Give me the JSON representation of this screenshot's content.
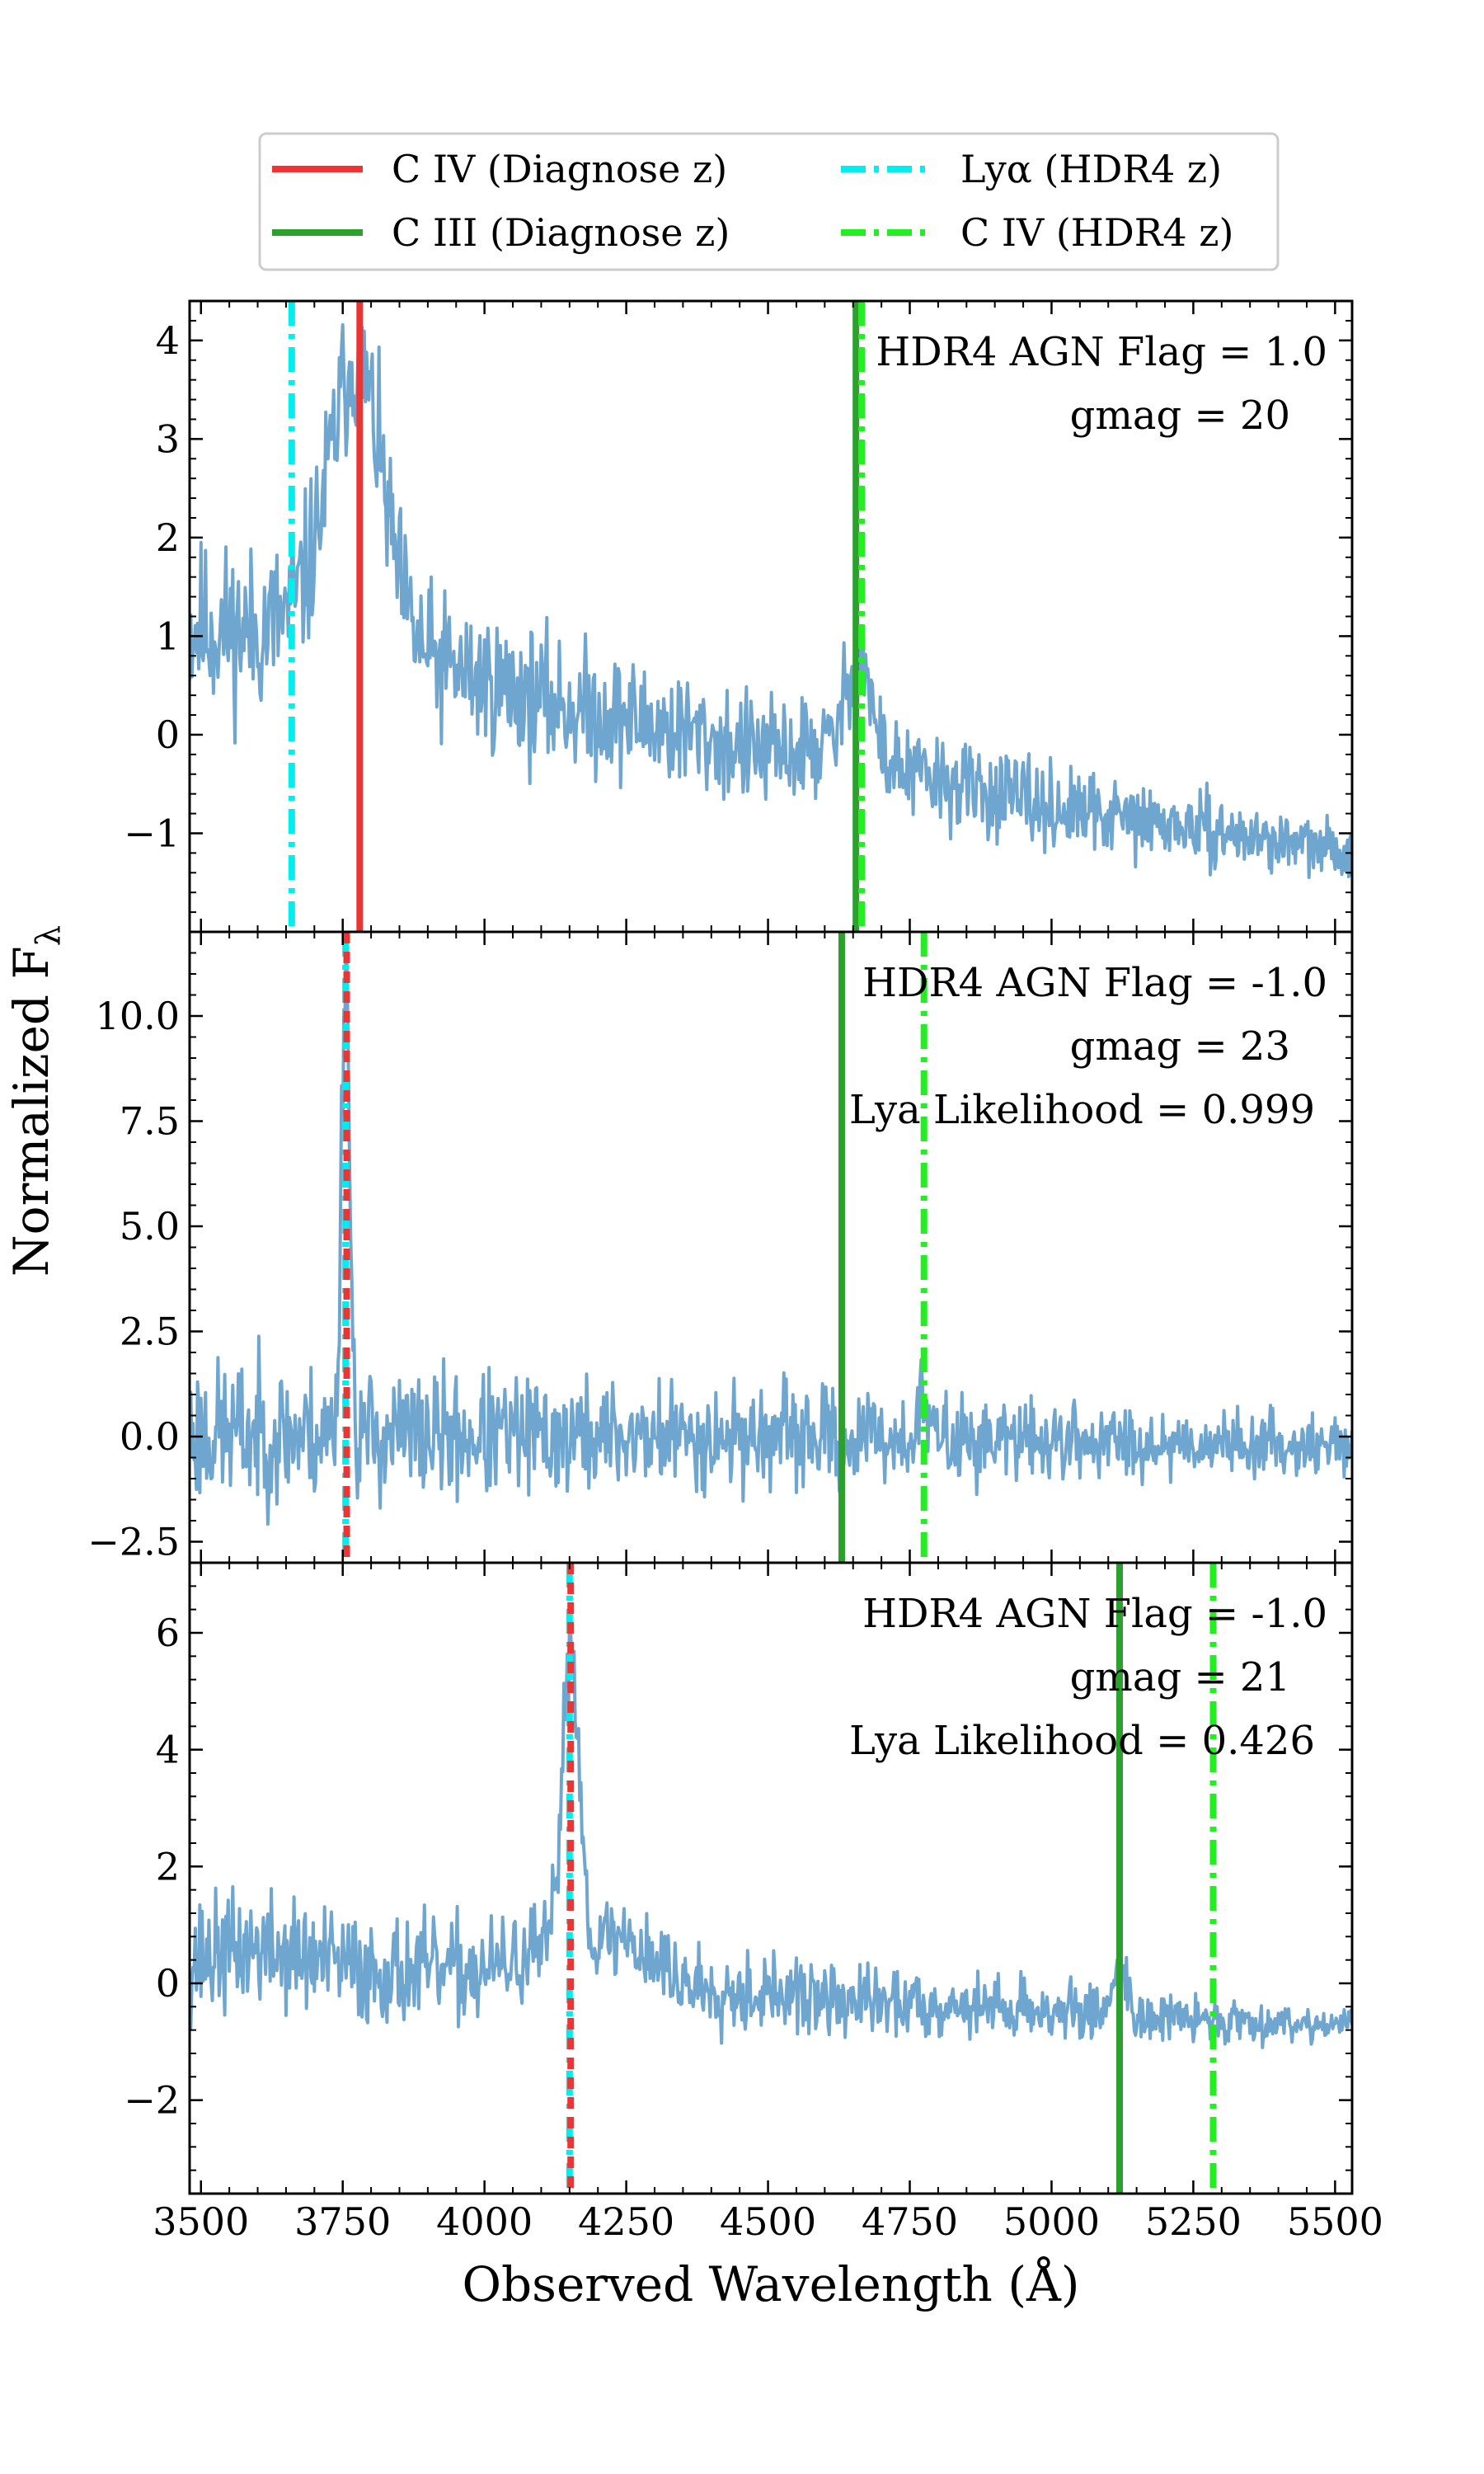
{
  "chart_data": {
    "type": "line",
    "xlabel": "Observed Wavelength (Å)",
    "ylabel": "Normalized F",
    "ylabel_sub": "λ",
    "xlim": [
      3480,
      5530
    ],
    "xticks": [
      3500,
      3750,
      4000,
      4250,
      4500,
      4750,
      5000,
      5250,
      5500
    ],
    "legend": {
      "placement": "top-center",
      "entries": [
        {
          "id": "civ_diag",
          "text": "C IV (Diagnose z)",
          "color": "#ee3333",
          "style": "solid"
        },
        {
          "id": "ciii_diag",
          "text": "C III (Diagnose z)",
          "color": "#2ca02c",
          "style": "solid"
        },
        {
          "id": "lya_hdr4",
          "text": "Lyα (HDR4 z)",
          "color": "#00eeee",
          "style": "dashdot"
        },
        {
          "id": "civ_hdr4",
          "text": "C IV (HDR4 z)",
          "color": "#22ee22",
          "style": "dashdot"
        }
      ]
    },
    "spectrum_color": "#6fa6cf",
    "panels": [
      {
        "ylim": [
          -2.0,
          4.4
        ],
        "yticks": [
          -1,
          0,
          1,
          2,
          3,
          4
        ],
        "ytick_labels": [
          "−1",
          "0",
          "1",
          "2",
          "3",
          "4"
        ],
        "annotations": [
          "HDR4 AGN Flag = 1.0",
          "gmag = 20"
        ],
        "lines": [
          {
            "legend": "lya_hdr4",
            "x": 3660
          },
          {
            "legend": "civ_diag",
            "x": 3780
          },
          {
            "legend": "ciii_diag",
            "x": 4655
          },
          {
            "legend": "civ_hdr4",
            "x": 4665
          }
        ],
        "spectrum": {
          "seed": 11,
          "noise_start": 0.75,
          "noise_end": 0.22,
          "continuum": [
            [
              3480,
              1.1
            ],
            [
              3600,
              1.05
            ],
            [
              3700,
              1.3
            ],
            [
              3900,
              0.75
            ],
            [
              4100,
              0.35
            ],
            [
              4300,
              0.1
            ],
            [
              4500,
              -0.2
            ],
            [
              4640,
              -0.1
            ],
            [
              4750,
              -0.4
            ],
            [
              5000,
              -0.75
            ],
            [
              5250,
              -0.95
            ],
            [
              5530,
              -1.2
            ]
          ],
          "peaks": [
            {
              "x": 3775,
              "amp": 2.7,
              "w": 45
            },
            {
              "x": 4660,
              "amp": 1.0,
              "w": 20
            }
          ]
        }
      },
      {
        "ylim": [
          -3.0,
          12.0
        ],
        "yticks": [
          -2.5,
          0.0,
          2.5,
          5.0,
          7.5,
          10.0
        ],
        "ytick_labels": [
          "−2.5",
          "0.0",
          "2.5",
          "5.0",
          "7.5",
          "10.0"
        ],
        "annotations": [
          "HDR4 AGN Flag = -1.0",
          "gmag = 23",
          "Lya Likelihood = 0.999"
        ],
        "lines": [
          {
            "legend": "lya_hdr4",
            "x": 3755
          },
          {
            "legend": "civ_diag",
            "x": 3757,
            "dotted": true
          },
          {
            "legend": "ciii_diag",
            "x": 4630
          },
          {
            "legend": "civ_hdr4",
            "x": 4775
          }
        ],
        "spectrum": {
          "seed": 23,
          "noise_start": 1.5,
          "noise_end": 0.55,
          "continuum": [
            [
              3480,
              0.1
            ],
            [
              3700,
              0.05
            ],
            [
              4000,
              0.0
            ],
            [
              4500,
              0.0
            ],
            [
              5000,
              -0.1
            ],
            [
              5530,
              -0.2
            ]
          ],
          "peaks": [
            {
              "x": 3755,
              "amp": 11.5,
              "w": 7
            },
            {
              "x": 4775,
              "amp": 0.8,
              "w": 10
            }
          ]
        }
      },
      {
        "ylim": [
          -3.6,
          7.2
        ],
        "yticks": [
          -2,
          0,
          2,
          4,
          6
        ],
        "ytick_labels": [
          "−2",
          "0",
          "2",
          "4",
          "6"
        ],
        "annotations": [
          "HDR4 AGN Flag = -1.0",
          "gmag = 21",
          "Lya Likelihood = 0.426"
        ],
        "lines": [
          {
            "legend": "lya_hdr4",
            "x": 4150
          },
          {
            "legend": "civ_diag",
            "x": 4152,
            "dotted": true
          },
          {
            "legend": "ciii_diag",
            "x": 5120
          },
          {
            "legend": "civ_hdr4",
            "x": 5285
          }
        ],
        "spectrum": {
          "seed": 37,
          "noise_start": 0.9,
          "noise_end": 0.25,
          "continuum": [
            [
              3480,
              0.4
            ],
            [
              3600,
              0.6
            ],
            [
              3800,
              0.2
            ],
            [
              4000,
              0.2
            ],
            [
              4100,
              0.5
            ],
            [
              4250,
              0.8
            ],
            [
              4350,
              0.0
            ],
            [
              4600,
              -0.3
            ],
            [
              4900,
              -0.4
            ],
            [
              5200,
              -0.6
            ],
            [
              5530,
              -0.7
            ]
          ],
          "peaks": [
            {
              "x": 4152,
              "amp": 5.2,
              "w": 15
            },
            {
              "x": 5120,
              "amp": 0.9,
              "w": 12
            }
          ]
        }
      }
    ]
  }
}
